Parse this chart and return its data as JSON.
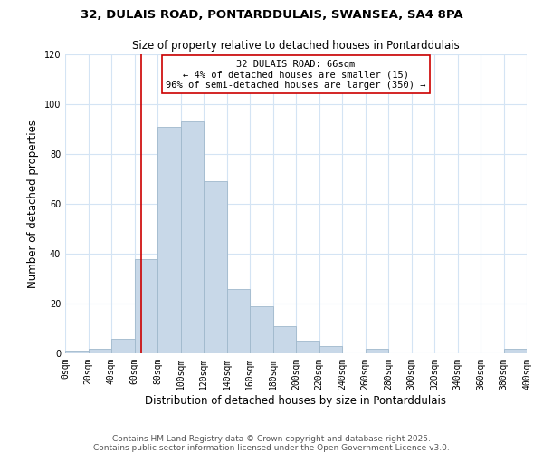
{
  "title1": "32, DULAIS ROAD, PONTARDDULAIS, SWANSEA, SA4 8PA",
  "title2": "Size of property relative to detached houses in Pontarddulais",
  "xlabel": "Distribution of detached houses by size in Pontarddulais",
  "ylabel": "Number of detached properties",
  "bin_edges": [
    0,
    20,
    40,
    60,
    80,
    100,
    120,
    140,
    160,
    180,
    200,
    220,
    240,
    260,
    280,
    300,
    320,
    340,
    360,
    380,
    400
  ],
  "bar_heights": [
    1,
    2,
    6,
    38,
    91,
    93,
    69,
    26,
    19,
    11,
    5,
    3,
    0,
    2,
    0,
    0,
    0,
    0,
    0,
    2
  ],
  "bar_color": "#c8d8e8",
  "bar_edge_color": "#a0b8cc",
  "vline_x": 66,
  "vline_color": "#cc0000",
  "annotation_line1": "32 DULAIS ROAD: 66sqm",
  "annotation_line2": "← 4% of detached houses are smaller (15)",
  "annotation_line3": "96% of semi-detached houses are larger (350) →",
  "annotation_box_color": "#ffffff",
  "annotation_box_edge_color": "#cc0000",
  "ylim": [
    0,
    120
  ],
  "xlim": [
    0,
    400
  ],
  "tick_labels": [
    "0sqm",
    "20sqm",
    "40sqm",
    "60sqm",
    "80sqm",
    "100sqm",
    "120sqm",
    "140sqm",
    "160sqm",
    "180sqm",
    "200sqm",
    "220sqm",
    "240sqm",
    "260sqm",
    "280sqm",
    "300sqm",
    "320sqm",
    "340sqm",
    "360sqm",
    "380sqm",
    "400sqm"
  ],
  "footer_line1": "Contains HM Land Registry data © Crown copyright and database right 2025.",
  "footer_line2": "Contains public sector information licensed under the Open Government Licence v3.0.",
  "bg_color": "#ffffff",
  "grid_color": "#d4e4f4",
  "title_fontsize": 9.5,
  "subtitle_fontsize": 8.5,
  "axis_label_fontsize": 8.5,
  "tick_fontsize": 7,
  "annotation_fontsize": 7.5,
  "footer_fontsize": 6.5
}
